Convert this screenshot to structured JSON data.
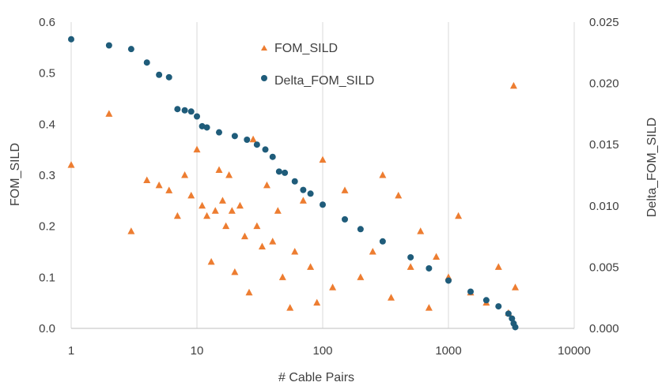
{
  "chart_data": {
    "type": "scatter",
    "x_scale": "log",
    "xlim": [
      1,
      10000
    ],
    "ylim_left": [
      0,
      0.6
    ],
    "ylim_right": [
      0,
      0.025
    ],
    "xlabel": "# Cable Pairs",
    "ylabel_left": "FOM_SILD",
    "ylabel_right": "Delta_FOM_SILD",
    "x_ticks": [
      "1",
      "10",
      "100",
      "1000",
      "10000"
    ],
    "y_left_ticks": [
      "0.0",
      "0.1",
      "0.2",
      "0.3",
      "0.4",
      "0.5",
      "0.6"
    ],
    "y_right_ticks": [
      "0.000",
      "0.005",
      "0.010",
      "0.015",
      "0.020",
      "0.025"
    ],
    "grid": "vertical",
    "legend": {
      "position": "top-center",
      "entries": [
        "FOM_SILD",
        "Delta_FOM_SILD"
      ]
    },
    "colors": {
      "FOM_SILD": "#ED7D31",
      "Delta_FOM_SILD": "#1F5C7A"
    },
    "series": [
      {
        "name": "FOM_SILD",
        "axis": "left",
        "marker": "triangle",
        "sampled": true,
        "x": [
          1,
          2,
          3,
          4,
          5,
          6,
          7,
          8,
          9,
          10,
          11,
          12,
          13,
          14,
          15,
          16,
          17,
          18,
          19,
          20,
          22,
          24,
          26,
          28,
          30,
          33,
          36,
          40,
          44,
          48,
          55,
          60,
          70,
          80,
          90,
          100,
          120,
          150,
          200,
          250,
          300,
          350,
          400,
          500,
          600,
          700,
          800,
          1000,
          1200,
          1500,
          2000,
          2500,
          3000,
          3300,
          3400
        ],
        "y": [
          0.32,
          0.42,
          0.19,
          0.29,
          0.28,
          0.27,
          0.22,
          0.3,
          0.26,
          0.35,
          0.24,
          0.22,
          0.13,
          0.23,
          0.31,
          0.25,
          0.2,
          0.3,
          0.23,
          0.11,
          0.24,
          0.18,
          0.07,
          0.37,
          0.2,
          0.16,
          0.28,
          0.17,
          0.23,
          0.1,
          0.04,
          0.15,
          0.25,
          0.12,
          0.05,
          0.33,
          0.08,
          0.27,
          0.1,
          0.15,
          0.3,
          0.06,
          0.26,
          0.12,
          0.19,
          0.04,
          0.14,
          0.1,
          0.22,
          0.07,
          0.05,
          0.12,
          0.03,
          0.475,
          0.08
        ]
      },
      {
        "name": "Delta_FOM_SILD",
        "axis": "right",
        "marker": "circle",
        "sampled": true,
        "x": [
          1,
          2,
          3,
          4,
          5,
          6,
          7,
          8,
          9,
          10,
          11,
          12,
          15,
          20,
          25,
          30,
          35,
          40,
          45,
          50,
          60,
          70,
          80,
          100,
          150,
          200,
          300,
          500,
          700,
          1000,
          1500,
          2000,
          2500,
          3000,
          3200,
          3300,
          3400
        ],
        "y": [
          0.0236,
          0.0231,
          0.0228,
          0.0217,
          0.0207,
          0.0205,
          0.0179,
          0.0178,
          0.0177,
          0.0173,
          0.0165,
          0.0164,
          0.016,
          0.0157,
          0.0154,
          0.015,
          0.0146,
          0.014,
          0.0128,
          0.0127,
          0.012,
          0.0113,
          0.011,
          0.0101,
          0.0089,
          0.0081,
          0.0071,
          0.0058,
          0.0049,
          0.0039,
          0.003,
          0.0023,
          0.0018,
          0.0012,
          0.0008,
          0.0004,
          0.0001
        ]
      }
    ]
  }
}
